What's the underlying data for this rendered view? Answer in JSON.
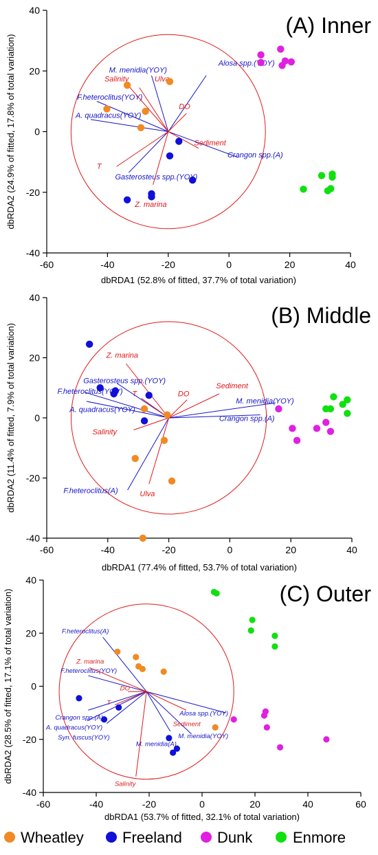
{
  "colors": {
    "wheatley": "#F08A24",
    "freeland": "#1010D8",
    "dunk": "#E020E0",
    "enmore": "#10E010",
    "species_vector": "#1515C8",
    "env_vector": "#E01818",
    "circle": "#E01818"
  },
  "legend": [
    {
      "key": "wheatley",
      "label": "Wheatley"
    },
    {
      "key": "freeland",
      "label": "Freeland"
    },
    {
      "key": "dunk",
      "label": "Dunk"
    },
    {
      "key": "enmore",
      "label": "Enmore"
    }
  ],
  "chart_data": [
    {
      "type": "scatter",
      "title": "(A) Inner",
      "xlabel": "dbRDA1 (52.8% of fitted, 37.7% of total variation)",
      "ylabel": "dbRDA2 (24.9% of fitted, 17.8% of total variation)",
      "xlim": [
        -60,
        40
      ],
      "ylim": [
        -40,
        40
      ],
      "xticks": [
        -60,
        -40,
        -20,
        0,
        20,
        40
      ],
      "yticks": [
        40,
        20,
        0,
        -20,
        -40
      ],
      "circle": {
        "center": [
          -20,
          0
        ],
        "radius": 32
      },
      "points": [
        {
          "site": "wheatley",
          "x": -33.5,
          "y": 15.3
        },
        {
          "site": "wheatley",
          "x": -19.5,
          "y": 16.5
        },
        {
          "site": "wheatley",
          "x": -40.2,
          "y": 7.5
        },
        {
          "site": "wheatley",
          "x": -27.5,
          "y": 6.7
        },
        {
          "site": "wheatley",
          "x": -29.0,
          "y": 1.3
        },
        {
          "site": "freeland",
          "x": -16.5,
          "y": -3.2
        },
        {
          "site": "freeland",
          "x": -19.5,
          "y": -8.0
        },
        {
          "site": "freeland",
          "x": -12.0,
          "y": -16.0
        },
        {
          "site": "freeland",
          "x": -25.5,
          "y": -20.5
        },
        {
          "site": "freeland",
          "x": -25.5,
          "y": -21.5
        },
        {
          "site": "freeland",
          "x": -33.5,
          "y": -22.5
        },
        {
          "site": "dunk",
          "x": 10.5,
          "y": 25.3
        },
        {
          "site": "dunk",
          "x": 17.0,
          "y": 27.2
        },
        {
          "site": "dunk",
          "x": 10.5,
          "y": 22.8
        },
        {
          "site": "dunk",
          "x": 18.5,
          "y": 23.3
        },
        {
          "site": "dunk",
          "x": 20.5,
          "y": 23.0
        },
        {
          "site": "dunk",
          "x": 17.5,
          "y": 21.8
        },
        {
          "site": "enmore",
          "x": 34.0,
          "y": -14.0
        },
        {
          "site": "enmore",
          "x": 34.0,
          "y": -15.0
        },
        {
          "site": "enmore",
          "x": 30.5,
          "y": -14.5
        },
        {
          "site": "enmore",
          "x": 24.5,
          "y": -19.0
        },
        {
          "site": "enmore",
          "x": 32.5,
          "y": -19.5
        },
        {
          "site": "enmore",
          "x": 33.5,
          "y": -18.8
        }
      ],
      "vectors": [
        {
          "label": "M. menidia(YOY)",
          "kind": "species",
          "x": -25.5,
          "y": 18.5,
          "lx": -39.5,
          "ly": 19.5
        },
        {
          "label": "Alosa spp.(YOY)",
          "kind": "species",
          "x": -7.5,
          "y": 18.5,
          "lx": -3.5,
          "ly": 21.8
        },
        {
          "label": "F.heteroclitus(YOY)",
          "kind": "species",
          "x": -43.5,
          "y": 10.0,
          "lx": -50.0,
          "ly": 10.5
        },
        {
          "label": "A. quadracus(YOY)",
          "kind": "species",
          "x": -45.5,
          "y": 4.0,
          "lx": -50.5,
          "ly": 4.5
        },
        {
          "label": "Crangon spp.(A)",
          "kind": "species",
          "x": 3.0,
          "y": -8.5,
          "lx": -0.5,
          "ly": -8.5
        },
        {
          "label": "Gasterosteus spp.(YOY)",
          "kind": "species",
          "x": -33.0,
          "y": -13.5,
          "lx": -37.5,
          "ly": -15.8
        },
        {
          "label": "Salinity",
          "kind": "env",
          "x": -33.0,
          "y": 15.0,
          "lx": -41.0,
          "ly": 16.5
        },
        {
          "label": "Ulva",
          "kind": "env",
          "x": -29.5,
          "y": 14.5,
          "lx": -24.5,
          "ly": 16.5
        },
        {
          "label": "DO",
          "kind": "env",
          "x": -14.0,
          "y": 6.0,
          "lx": -16.5,
          "ly": 7.5
        },
        {
          "label": "Sediment",
          "kind": "env",
          "x": -10.0,
          "y": -5.5,
          "lx": -11.5,
          "ly": -4.5
        },
        {
          "label": "T",
          "kind": "env",
          "x": -37.0,
          "y": -11.5,
          "lx": -43.5,
          "ly": -12.2
        },
        {
          "label": "Z. marina",
          "kind": "env",
          "x": -25.0,
          "y": -17.5,
          "lx": -31.0,
          "ly": -24.8
        }
      ]
    },
    {
      "type": "scatter",
      "title": "(B) Middle",
      "xlabel": "dbRDA1 (77.4% of fitted, 53.7% of total variation)",
      "ylabel": "dbRDA2 (11.4% of fitted, 7.9% of total variation)",
      "xlim": [
        -60,
        40
      ],
      "ylim": [
        -40,
        40
      ],
      "xticks": [
        -60,
        -40,
        -20,
        0,
        20,
        40
      ],
      "yticks": [
        40,
        20,
        0,
        -20,
        -40
      ],
      "circle": {
        "center": [
          -20,
          0
        ],
        "radius": 32
      },
      "points": [
        {
          "site": "freeland",
          "x": -46.0,
          "y": 24.5
        },
        {
          "site": "freeland",
          "x": -42.5,
          "y": 10.0
        },
        {
          "site": "freeland",
          "x": -37.5,
          "y": 9.0
        },
        {
          "site": "freeland",
          "x": -38.0,
          "y": 8.0
        },
        {
          "site": "freeland",
          "x": -26.5,
          "y": 7.5
        },
        {
          "site": "freeland",
          "x": -28.0,
          "y": -1.0
        },
        {
          "site": "wheatley",
          "x": -28.0,
          "y": 3.0
        },
        {
          "site": "wheatley",
          "x": -20.5,
          "y": 1.0
        },
        {
          "site": "wheatley",
          "x": -21.5,
          "y": -7.5
        },
        {
          "site": "wheatley",
          "x": -31.0,
          "y": -13.5
        },
        {
          "site": "wheatley",
          "x": -19.0,
          "y": -21.0
        },
        {
          "site": "wheatley",
          "x": -28.5,
          "y": -40.0
        },
        {
          "site": "dunk",
          "x": 16.0,
          "y": 3.0
        },
        {
          "site": "dunk",
          "x": 20.5,
          "y": -3.5
        },
        {
          "site": "dunk",
          "x": 22.0,
          "y": -7.5
        },
        {
          "site": "dunk",
          "x": 28.5,
          "y": -3.5
        },
        {
          "site": "dunk",
          "x": 31.5,
          "y": -1.5
        },
        {
          "site": "dunk",
          "x": 33.0,
          "y": -4.5
        },
        {
          "site": "enmore",
          "x": 34.0,
          "y": 7.0
        },
        {
          "site": "enmore",
          "x": 38.5,
          "y": 6.0
        },
        {
          "site": "enmore",
          "x": 37.0,
          "y": 4.5
        },
        {
          "site": "enmore",
          "x": 31.5,
          "y": 3.0
        },
        {
          "site": "enmore",
          "x": 33.0,
          "y": 3.0
        },
        {
          "site": "enmore",
          "x": 38.5,
          "y": 1.5
        }
      ],
      "vectors": [
        {
          "label": "Gasterosteus spp.(YOY)",
          "kind": "species",
          "x": -37.0,
          "y": 11.5,
          "lx": -48.0,
          "ly": 11.5
        },
        {
          "label": "F.heteroclitus(YOY)",
          "kind": "species",
          "x": -47.5,
          "y": 8.5,
          "lx": -56.5,
          "ly": 8.0
        },
        {
          "label": "A. quadracus(YOY)",
          "kind": "species",
          "x": -47.0,
          "y": 5.5,
          "lx": -52.5,
          "ly": 2.0
        },
        {
          "label": "M. menidia(YOY)",
          "kind": "species",
          "x": 15.0,
          "y": 5.0,
          "lx": 2.0,
          "ly": 4.8
        },
        {
          "label": "Crangon spp.(A)",
          "kind": "species",
          "x": 10.0,
          "y": 1.0,
          "lx": -3.5,
          "ly": -1.0
        },
        {
          "label": "F.heteroclitus(A)",
          "kind": "species",
          "x": -33.5,
          "y": -24.0,
          "lx": -54.5,
          "ly": -25.0
        },
        {
          "label": "Z. marina",
          "kind": "env",
          "x": -34.0,
          "y": 18.0,
          "lx": -40.5,
          "ly": 20.0
        },
        {
          "label": "T",
          "kind": "env",
          "x": -29.0,
          "y": 6.5,
          "lx": -32.0,
          "ly": 7.2
        },
        {
          "label": "DO",
          "kind": "env",
          "x": -14.0,
          "y": 6.0,
          "lx": -17.0,
          "ly": 7.2
        },
        {
          "label": "Sediment",
          "kind": "env",
          "x": -3.5,
          "y": 8.0,
          "lx": -4.5,
          "ly": 9.8
        },
        {
          "label": "Salinity",
          "kind": "env",
          "x": -31.5,
          "y": -4.0,
          "lx": -45.0,
          "ly": -5.5
        },
        {
          "label": "Ulva",
          "kind": "env",
          "x": -26.5,
          "y": -22.0,
          "lx": -29.5,
          "ly": -26.0
        }
      ]
    },
    {
      "type": "scatter",
      "title": "(C) Outer",
      "xlabel": "dbRDA1 (53.7% of fitted, 32.1% of total variation)",
      "ylabel": "dbRDA2 (28.5% of fitted, 17.1% of total variation)",
      "xlim": [
        -60,
        60
      ],
      "ylim": [
        -40,
        40
      ],
      "xticks": [
        -60,
        -40,
        -20,
        0,
        20,
        40,
        60
      ],
      "yticks": [
        40,
        20,
        0,
        -20,
        -40
      ],
      "circle": {
        "center": [
          -21,
          -2
        ],
        "radius": 33
      },
      "points": [
        {
          "site": "wheatley",
          "x": -32.0,
          "y": 13.0
        },
        {
          "site": "wheatley",
          "x": -25.0,
          "y": 11.0
        },
        {
          "site": "wheatley",
          "x": -24.0,
          "y": 7.5
        },
        {
          "site": "wheatley",
          "x": -22.5,
          "y": 6.5
        },
        {
          "site": "wheatley",
          "x": -14.5,
          "y": 5.5
        },
        {
          "site": "wheatley",
          "x": 5.0,
          "y": -15.5
        },
        {
          "site": "freeland",
          "x": -46.5,
          "y": -4.5
        },
        {
          "site": "freeland",
          "x": -31.5,
          "y": -8.0
        },
        {
          "site": "freeland",
          "x": -37.0,
          "y": -12.5
        },
        {
          "site": "freeland",
          "x": -12.5,
          "y": -19.5
        },
        {
          "site": "freeland",
          "x": -11.0,
          "y": -25.0
        },
        {
          "site": "freeland",
          "x": -9.5,
          "y": -23.5
        },
        {
          "site": "dunk",
          "x": 12.0,
          "y": -12.5
        },
        {
          "site": "dunk",
          "x": 23.5,
          "y": -11.0
        },
        {
          "site": "dunk",
          "x": 24.0,
          "y": -9.5
        },
        {
          "site": "dunk",
          "x": 24.5,
          "y": -15.5
        },
        {
          "site": "dunk",
          "x": 29.5,
          "y": -23.0
        },
        {
          "site": "dunk",
          "x": 47.0,
          "y": -20.0
        },
        {
          "site": "enmore",
          "x": 4.5,
          "y": 35.5
        },
        {
          "site": "enmore",
          "x": 5.5,
          "y": 35.0
        },
        {
          "site": "enmore",
          "x": 19.0,
          "y": 25.0
        },
        {
          "site": "enmore",
          "x": 18.5,
          "y": 21.0
        },
        {
          "site": "enmore",
          "x": 27.5,
          "y": 19.0
        },
        {
          "site": "enmore",
          "x": 27.5,
          "y": 15.0
        }
      ],
      "vectors": [
        {
          "label": "F.heteroclitus(A)",
          "kind": "species",
          "x": -37.5,
          "y": 18.5,
          "lx": -53.0,
          "ly": 20.0
        },
        {
          "label": "F.heteroclitus(YOY)",
          "kind": "species",
          "x": -43.0,
          "y": 4.0,
          "lx": -53.5,
          "ly": 5.0
        },
        {
          "label": "Alosa spp.(YOY)",
          "kind": "species",
          "x": 9.0,
          "y": -10.0,
          "lx": -8.5,
          "ly": -11.0
        },
        {
          "label": "Crangon spp.(A)",
          "kind": "species",
          "x": -43.0,
          "y": -9.0,
          "lx": -55.5,
          "ly": -12.5
        },
        {
          "label": "A. quadracus(YOY)",
          "kind": "species",
          "x": -43.5,
          "y": -13.0,
          "lx": -59.0,
          "ly": -16.3
        },
        {
          "label": "Syn. fuscus(YOY)",
          "kind": "species",
          "x": -36.0,
          "y": -14.0,
          "lx": -54.5,
          "ly": -20.0
        },
        {
          "label": "M. menidia(A)",
          "kind": "species",
          "x": -12.0,
          "y": -17.0,
          "lx": -25.0,
          "ly": -22.5
        },
        {
          "label": "M. menidia(YOY)",
          "kind": "species",
          "x": -4.0,
          "y": -18.0,
          "lx": -9.0,
          "ly": -19.5
        },
        {
          "label": "Z. marina",
          "kind": "env",
          "x": -42.5,
          "y": 7.0,
          "lx": -47.5,
          "ly": 8.5
        },
        {
          "label": "DO",
          "kind": "env",
          "x": -28.0,
          "y": -2.0,
          "lx": -31.0,
          "ly": -1.5
        },
        {
          "label": "Sediment",
          "kind": "env",
          "x": -6.0,
          "y": -9.0,
          "lx": -11.0,
          "ly": -15.0
        },
        {
          "label": "T",
          "kind": "env",
          "x": -33.0,
          "y": -7.0,
          "lx": -36.0,
          "ly": -7.0
        },
        {
          "label": "Salinity",
          "kind": "env",
          "x": -25.0,
          "y": -34.0,
          "lx": -33.0,
          "ly": -37.5
        }
      ]
    }
  ]
}
